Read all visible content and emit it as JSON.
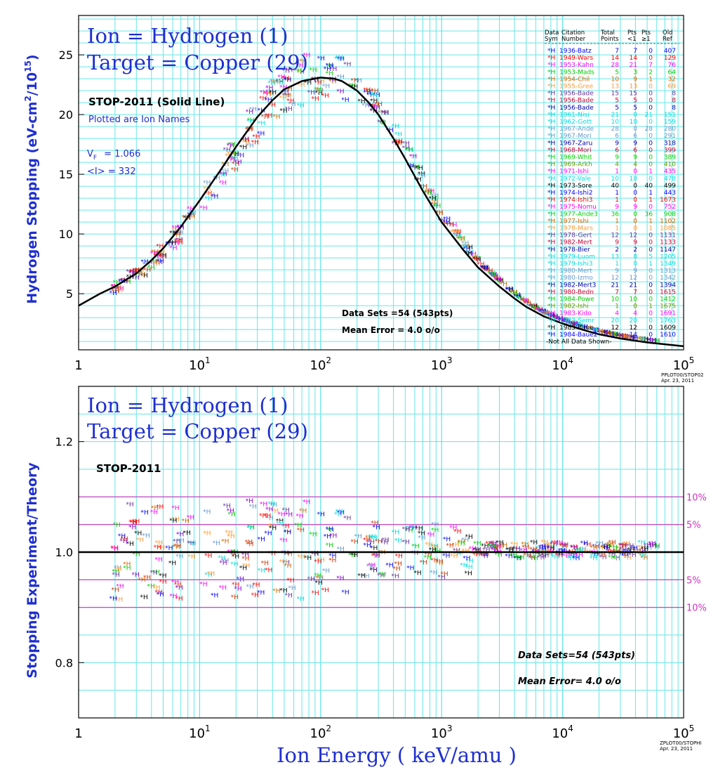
{
  "colors": {
    "grid": "#66e6e6",
    "theory": "#000000",
    "axis_label": "#1f2fd0",
    "title": "#1f2fd0",
    "error_band": "#cc33bb",
    "series_palette": [
      "#0000ff",
      "#ff0000",
      "#ff00ff",
      "#00cc00",
      "#cc6600",
      "#ff9933",
      "#663399",
      "#00dddd",
      "#6699cc",
      "#8800cc",
      "#000000",
      "#cc3300"
    ]
  },
  "top_panel": {
    "title_line1": "Ion = Hydrogen (1)",
    "title_line2": "Target = Copper (29)",
    "theory_label": "STOP-2011 (Solid Line)",
    "plotted_note": "Plotted are Ion Names",
    "vf_label": "V",
    "vf_sub": "F",
    "vf_value": "= 1.066",
    "mean_i": "<I> = 332",
    "ylabel": "Hydrogen Stopping (eV-cm",
    "ylabel_sup1": "2",
    "ylabel_mid": "/10",
    "ylabel_sup2": "15",
    "ylabel_end": ")",
    "data_sets": "Data Sets =54 (543pts)",
    "mean_error": "Mean Error =  4.0 o/o",
    "footer_id": "PPLOT00/STOP02",
    "footer_date": "Apr. 23, 2011",
    "legend_header": {
      "c1": "Data",
      "c1b": "Sym",
      "c2": "Citation",
      "c2b": "Number",
      "c3": "Total",
      "c3b": "Points",
      "c4": "Pts",
      "c4b": "<1",
      "c5": "Pts",
      "c5b": "≥1",
      "c6": "Old",
      "c6b": "Ref"
    },
    "legend_rows": [
      {
        "sym": "*H",
        "cite": "1936-Batz",
        "tot": "7",
        "lt": "7",
        "ge": "0",
        "ref": "407",
        "color": "#0000ff"
      },
      {
        "sym": "*H",
        "cite": "1949-Wars",
        "tot": "14",
        "lt": "14",
        "ge": "0",
        "ref": "129",
        "color": "#ff0000"
      },
      {
        "sym": "*H",
        "cite": "1953-Kahn",
        "tot": "28",
        "lt": "21",
        "ge": "7",
        "ref": "76",
        "color": "#ff00ff"
      },
      {
        "sym": "*H",
        "cite": "1953-Mads",
        "tot": "5",
        "lt": "3",
        "ge": "2",
        "ref": "64",
        "color": "#00cc00"
      },
      {
        "sym": "*H",
        "cite": "1954-Chil",
        "tot": "10",
        "lt": "9",
        "ge": "1",
        "ref": "32",
        "color": "#cc6600"
      },
      {
        "sym": "*H",
        "cite": "1955-Gree",
        "tot": "13",
        "lt": "13",
        "ge": "0",
        "ref": "69",
        "color": "#ff9933"
      },
      {
        "sym": "*H",
        "cite": "1956-Bade",
        "tot": "15",
        "lt": "15",
        "ge": "0",
        "ref": "8",
        "color": "#663399"
      },
      {
        "sym": "*H",
        "cite": "1956-Bade",
        "tot": "5",
        "lt": "5",
        "ge": "0",
        "ref": "8",
        "color": "#cc0033"
      },
      {
        "sym": "*H",
        "cite": "1956-Bade",
        "tot": "5",
        "lt": "5",
        "ge": "0",
        "ref": "8",
        "color": "#0000aa"
      },
      {
        "sym": "*H",
        "cite": "1961-Nisi",
        "tot": "21",
        "lt": "0",
        "ge": "21",
        "ref": "151",
        "color": "#00dddd"
      },
      {
        "sym": "*H",
        "cite": "1962-Gott",
        "tot": "10",
        "lt": "10",
        "ge": "0",
        "ref": "159",
        "color": "#00dddd"
      },
      {
        "sym": "*H",
        "cite": "1967-Ande",
        "tot": "28",
        "lt": "0",
        "ge": "28",
        "ref": "280",
        "color": "#6699cc"
      },
      {
        "sym": "*H",
        "cite": "1967-Mori",
        "tot": "6",
        "lt": "6",
        "ge": "0",
        "ref": "291",
        "color": "#6699cc"
      },
      {
        "sym": "*H",
        "cite": "1967-Zaru",
        "tot": "9",
        "lt": "9",
        "ge": "0",
        "ref": "318",
        "color": "#0000aa"
      },
      {
        "sym": "*H",
        "cite": "1968-Mori",
        "tot": "6",
        "lt": "6",
        "ge": "0",
        "ref": "399",
        "color": "#cc0033"
      },
      {
        "sym": "*H",
        "cite": "1969-Whit",
        "tot": "9",
        "lt": "9",
        "ge": "0",
        "ref": "389",
        "color": "#00cc00"
      },
      {
        "sym": "*H",
        "cite": "1969-Arkh",
        "tot": "4",
        "lt": "4",
        "ge": "0",
        "ref": "410",
        "color": "#669900"
      },
      {
        "sym": "*H",
        "cite": "1971-Ishi",
        "tot": "1",
        "lt": "0",
        "ge": "1",
        "ref": "435",
        "color": "#ff00ff"
      },
      {
        "sym": "*H",
        "cite": "1972-Vale",
        "tot": "10",
        "lt": "10",
        "ge": "0",
        "ref": "478",
        "color": "#00dddd"
      },
      {
        "sym": "*H",
        "cite": "1973-Sore",
        "tot": "40",
        "lt": "0",
        "ge": "40",
        "ref": "499",
        "color": "#000000"
      },
      {
        "sym": "*H",
        "cite": "1974-Ishi2",
        "tot": "1",
        "lt": "0",
        "ge": "1",
        "ref": "443",
        "color": "#0000ff"
      },
      {
        "sym": "*H",
        "cite": "1974-Ishi3",
        "tot": "1",
        "lt": "0",
        "ge": "1",
        "ref": "1673",
        "color": "#ff0000"
      },
      {
        "sym": "*H",
        "cite": "1975-Nomu",
        "tot": "9",
        "lt": "9",
        "ge": "0",
        "ref": "752",
        "color": "#ff00ff"
      },
      {
        "sym": "*H",
        "cite": "1977-Ande3",
        "tot": "36",
        "lt": "0",
        "ge": "36",
        "ref": "908",
        "color": "#00cc00"
      },
      {
        "sym": "*H",
        "cite": "1977-Ishi",
        "tot": "1",
        "lt": "0",
        "ge": "1",
        "ref": "1102",
        "color": "#cc6600"
      },
      {
        "sym": "*H",
        "cite": "1978-Mars",
        "tot": "1",
        "lt": "0",
        "ge": "1",
        "ref": "1085",
        "color": "#ff9933"
      },
      {
        "sym": "*H",
        "cite": "1978-Gert",
        "tot": "12",
        "lt": "12",
        "ge": "0",
        "ref": "1131",
        "color": "#663399"
      },
      {
        "sym": "*H",
        "cite": "1982-Mert",
        "tot": "9",
        "lt": "9",
        "ge": "0",
        "ref": "1133",
        "color": "#cc0033"
      },
      {
        "sym": "*H",
        "cite": "1978-Bier",
        "tot": "2",
        "lt": "2",
        "ge": "0",
        "ref": "1147",
        "color": "#0000aa"
      },
      {
        "sym": "*H",
        "cite": "1979-Luom",
        "tot": "13",
        "lt": "8",
        "ge": "5",
        "ref": "1205",
        "color": "#00dddd"
      },
      {
        "sym": "*H",
        "cite": "1979-Ishi3",
        "tot": "1",
        "lt": "0",
        "ge": "1",
        "ref": "1349",
        "color": "#00dddd"
      },
      {
        "sym": "*H",
        "cite": "1980-Mert",
        "tot": "9",
        "lt": "9",
        "ge": "0",
        "ref": "1313",
        "color": "#6699cc"
      },
      {
        "sym": "*H",
        "cite": "1980-Izmo",
        "tot": "12",
        "lt": "12",
        "ge": "0",
        "ref": "1342",
        "color": "#6699cc"
      },
      {
        "sym": "*H",
        "cite": "1982-Mert3",
        "tot": "21",
        "lt": "21",
        "ge": "0",
        "ref": "1394",
        "color": "#0000aa"
      },
      {
        "sym": "*H",
        "cite": "1980-Bedn",
        "tot": "7",
        "lt": "7",
        "ge": "0",
        "ref": "1615",
        "color": "#cc0033"
      },
      {
        "sym": "*H",
        "cite": "1984-Powe",
        "tot": "10",
        "lt": "10",
        "ge": "0",
        "ref": "1412",
        "color": "#00cc00"
      },
      {
        "sym": "*H",
        "cite": "1982-Ishi",
        "tot": "1",
        "lt": "0",
        "ge": "1",
        "ref": "1675",
        "color": "#669900"
      },
      {
        "sym": "*H",
        "cite": "1983-Kido",
        "tot": "4",
        "lt": "4",
        "ge": "0",
        "ref": "1691",
        "color": "#ff00ff"
      },
      {
        "sym": "*H",
        "cite": "1983-Semr",
        "tot": "20",
        "lt": "20",
        "ge": "0",
        "ref": "1763",
        "color": "#00dddd"
      },
      {
        "sym": "*H",
        "cite": "1983-Baue",
        "tot": "12",
        "lt": "12",
        "ge": "0",
        "ref": "1609",
        "color": "#000000"
      },
      {
        "sym": "*H",
        "cite": "1984-Baue2",
        "tot": "14",
        "lt": "14",
        "ge": "0",
        "ref": "1610",
        "color": "#0000ff"
      }
    ],
    "legend_footer": "-Not All Data Shown-"
  },
  "bottom_panel": {
    "title_line1": "Ion = Hydrogen (1)",
    "title_line2": "Target = Copper (29)",
    "theory_label": "STOP-2011",
    "ylabel": "Stopping  Experiment/Theory",
    "xlabel": "Ion  Energy  ( keV/amu )",
    "data_sets": "Data Sets=54 (543pts)",
    "mean_error": "Mean Error=  4.0 o/o",
    "footer_id": "ZPLOT00/STOPHI",
    "footer_date": "Apr. 23, 2011",
    "band_labels": [
      "10%",
      "5%",
      "5%",
      "10%"
    ]
  },
  "chart_data": [
    {
      "type": "scatter",
      "title": "Ion = Hydrogen (1) / Target = Copper (29)",
      "ylabel": "Hydrogen Stopping (eV-cm2/1015)",
      "xscale": "log",
      "xlim": [
        1,
        100000
      ],
      "ylim": [
        0.3,
        28.3
      ],
      "grid": true,
      "legend_position": "top-right",
      "x_ticks": [
        {
          "value": 1,
          "label": "1",
          "sup": ""
        },
        {
          "value": 10,
          "label": "10",
          "sup": "1"
        },
        {
          "value": 100,
          "label": "10",
          "sup": "2"
        },
        {
          "value": 1000,
          "label": "10",
          "sup": "3"
        },
        {
          "value": 10000,
          "label": "10",
          "sup": "4"
        },
        {
          "value": 100000,
          "label": "10",
          "sup": "5"
        }
      ],
      "y_ticks": [
        5,
        10,
        15,
        20,
        25
      ],
      "theory_curve": {
        "name": "STOP-2011",
        "x": [
          1,
          1.5,
          2,
          3,
          4,
          5,
          7,
          10,
          15,
          20,
          30,
          40,
          50,
          70,
          100,
          130,
          150,
          200,
          250,
          300,
          400,
          500,
          700,
          1000,
          1500,
          2000,
          3000,
          4000,
          5000,
          7000,
          10000,
          15000,
          20000,
          30000,
          50000,
          100000
        ],
        "y": [
          4.0,
          5.0,
          5.6,
          6.7,
          7.8,
          8.8,
          10.6,
          12.8,
          15.4,
          17.3,
          19.8,
          21.2,
          22.1,
          22.8,
          23.1,
          23.0,
          22.8,
          22.0,
          21.0,
          20.0,
          18.0,
          16.3,
          13.6,
          11.0,
          8.7,
          7.2,
          5.6,
          4.6,
          3.9,
          3.1,
          2.5,
          1.95,
          1.6,
          1.25,
          0.92,
          0.6
        ]
      }
    },
    {
      "type": "scatter",
      "title": "Ion = Hydrogen (1) / Target = Copper (29)",
      "xlabel": "Ion  Energy  ( keV/amu )",
      "ylabel": "Stopping  Experiment/Theory",
      "xscale": "log",
      "xlim": [
        1,
        100000
      ],
      "ylim": [
        0.7,
        1.3
      ],
      "grid": true,
      "x_ticks": [
        {
          "value": 1,
          "label": "1",
          "sup": ""
        },
        {
          "value": 10,
          "label": "10",
          "sup": "1"
        },
        {
          "value": 100,
          "label": "10",
          "sup": "2"
        },
        {
          "value": 1000,
          "label": "10",
          "sup": "3"
        },
        {
          "value": 10000,
          "label": "10",
          "sup": "4"
        },
        {
          "value": 100000,
          "label": "10",
          "sup": "5"
        }
      ],
      "y_ticks": [
        0.8,
        1.0,
        1.2
      ],
      "reference_line": 1.0,
      "error_bands": [
        1.1,
        1.05,
        0.95,
        0.9
      ]
    }
  ]
}
